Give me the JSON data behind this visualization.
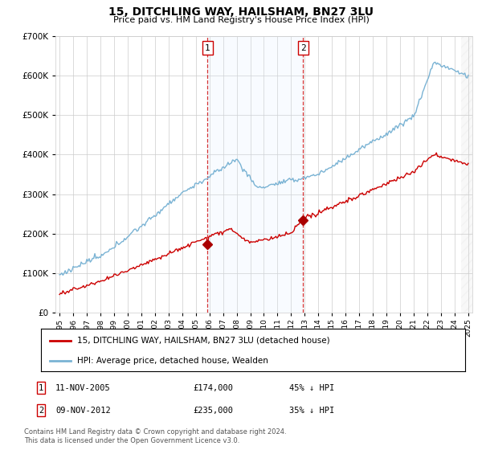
{
  "title": "15, DITCHLING WAY, HAILSHAM, BN27 3LU",
  "subtitle": "Price paid vs. HM Land Registry's House Price Index (HPI)",
  "hpi_label": "HPI: Average price, detached house, Wealden",
  "price_label": "15, DITCHLING WAY, HAILSHAM, BN27 3LU (detached house)",
  "hpi_color": "#7ab3d4",
  "price_color": "#cc0000",
  "marker_color": "#aa0000",
  "transaction1": {
    "date": "11-NOV-2005",
    "price": 174000,
    "label": "1",
    "x": 2005.87
  },
  "transaction2": {
    "date": "09-NOV-2012",
    "price": 235000,
    "label": "2",
    "x": 2012.87
  },
  "footnote": "Contains HM Land Registry data © Crown copyright and database right 2024.\nThis data is licensed under the Open Government Licence v3.0.",
  "ylim": [
    0,
    700000
  ],
  "xlim_start": 1994.7,
  "xlim_end": 2025.3,
  "background_color": "#ffffff",
  "grid_color": "#cccccc",
  "shading_color": "#ddeeff"
}
